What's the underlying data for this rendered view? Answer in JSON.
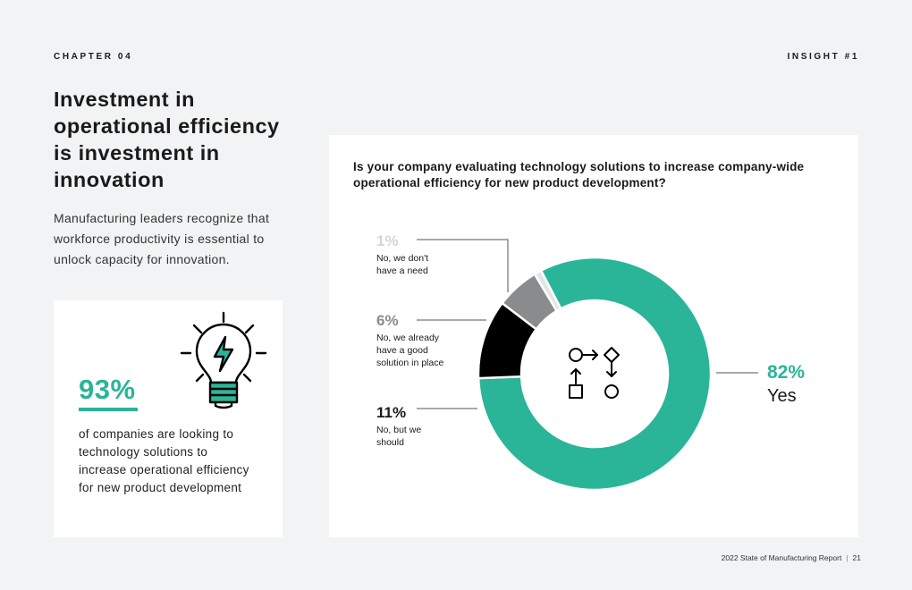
{
  "header": {
    "chapter": "CHAPTER 04",
    "insight": "INSIGHT #1"
  },
  "title": "Investment in operational efficiency is investment in innovation",
  "intro": "Manufacturing leaders recognize that workforce productivity is essential to unlock capacity for innovation.",
  "stat_card": {
    "icon": "lightbulb-lightning-icon",
    "value": "93%",
    "text": "of companies are looking to technology solutions to increase operational efficiency for new product development"
  },
  "colors": {
    "accent": "#2ab598",
    "gray": "#8a8b8d",
    "black": "#000000",
    "light": "#e3e4e5"
  },
  "chart_data": {
    "type": "pie",
    "title": "Is your company evaluating technology solutions to increase company-wide operational efficiency for new product development?",
    "center_icon": "workflow-icon",
    "slices": [
      {
        "pct_label": "82%",
        "value": 82,
        "lines": [
          "Yes"
        ],
        "color": "#2ab598"
      },
      {
        "pct_label": "11%",
        "value": 11,
        "lines": [
          "No, but we",
          "should"
        ],
        "color": "#000000"
      },
      {
        "pct_label": "6%",
        "value": 6,
        "lines": [
          "No, we already",
          "have a good",
          "solution in place"
        ],
        "color": "#8a8b8d"
      },
      {
        "pct_label": "1%",
        "value": 1,
        "lines": [
          "No, we don't",
          "have a need"
        ],
        "color": "#e3e4e5"
      }
    ]
  },
  "footer": {
    "report": "2022 State of Manufacturing Report",
    "page": "21"
  }
}
